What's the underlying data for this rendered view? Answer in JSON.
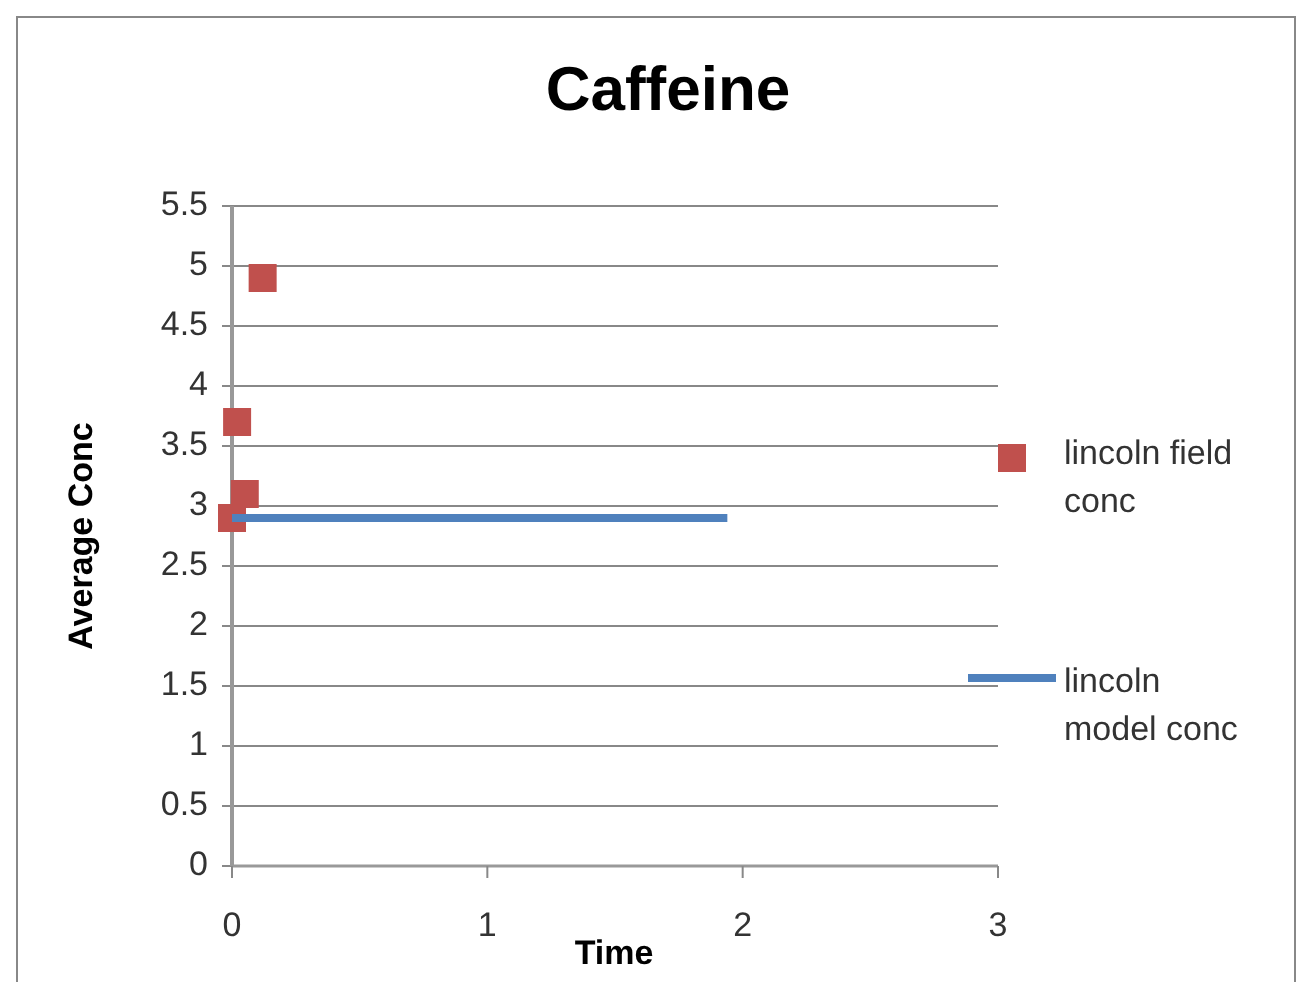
{
  "chart_data": {
    "type": "scatter",
    "title": "Caffeine",
    "xlabel": "Time",
    "ylabel": "Average Conc",
    "xlim": [
      0,
      3
    ],
    "xticks": [
      0,
      1,
      2,
      3
    ],
    "ylim": [
      0,
      5.5
    ],
    "yticks": [
      0,
      0.5,
      1,
      1.5,
      2,
      2.5,
      3,
      3.5,
      4,
      4.5,
      5,
      5.5
    ],
    "grid": "y",
    "legend": "right",
    "series": [
      {
        "name": "lincoln field conc",
        "marker": "square",
        "color": "#c0504d",
        "x": [
          0,
          0.02,
          0.05,
          0.12
        ],
        "values": [
          2.9,
          3.7,
          3.1,
          4.9
        ]
      },
      {
        "name": "lincoln model conc",
        "type": "line",
        "color": "#4f81bd",
        "x": [
          0,
          1.94
        ],
        "values": [
          2.9,
          2.9
        ]
      }
    ]
  }
}
